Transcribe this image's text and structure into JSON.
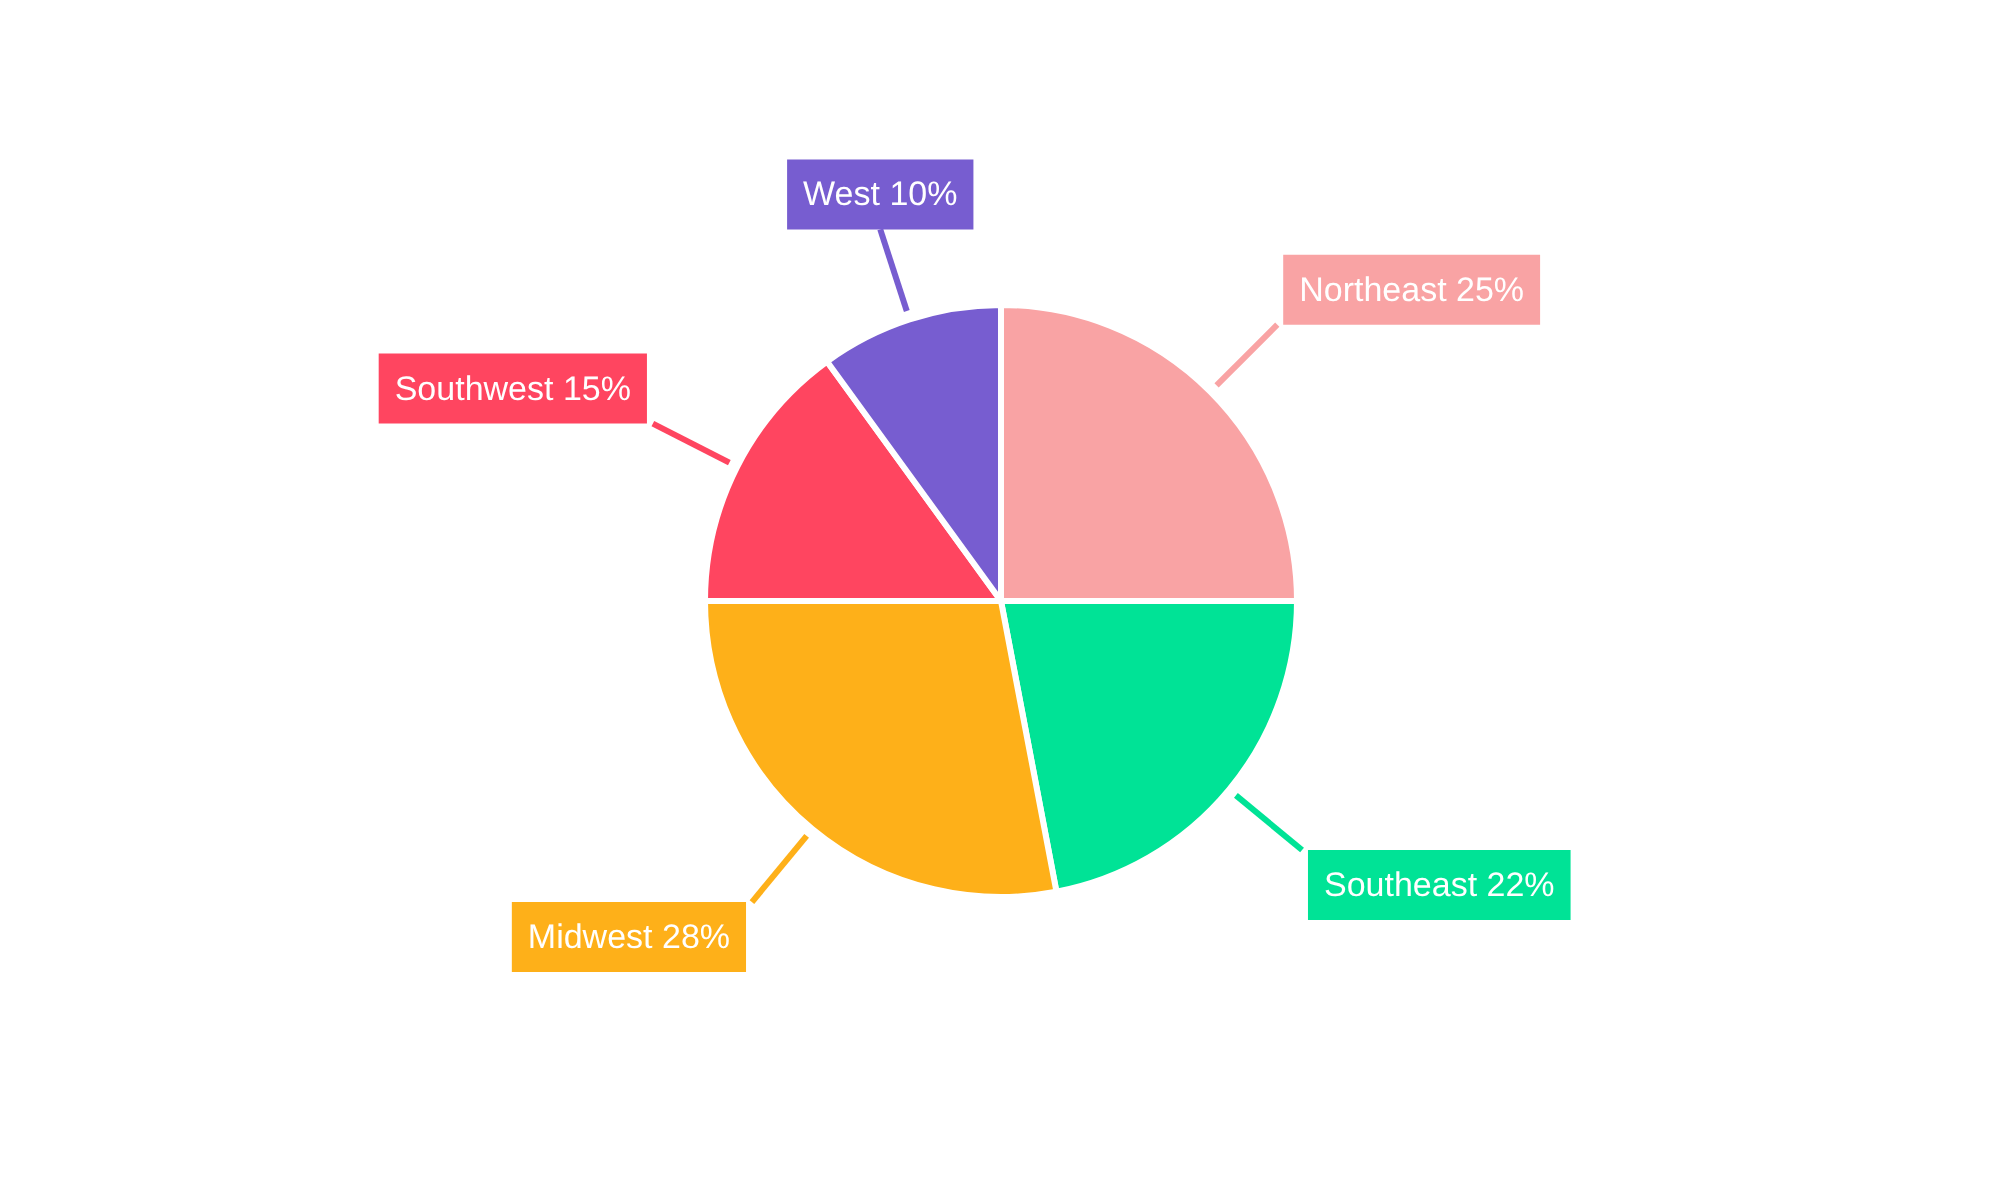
{
  "chart_data": {
    "type": "pie",
    "categories": [
      "Northeast",
      "Southeast",
      "Midwest",
      "Southwest",
      "West"
    ],
    "values": [
      25,
      22,
      28,
      15,
      10
    ],
    "value_labels": [
      "25%",
      "22%",
      "28%",
      "15%",
      "10%"
    ],
    "colors": [
      "#f9a3a4",
      "#00e396",
      "#feb019",
      "#ff4560",
      "#775dd0"
    ]
  }
}
